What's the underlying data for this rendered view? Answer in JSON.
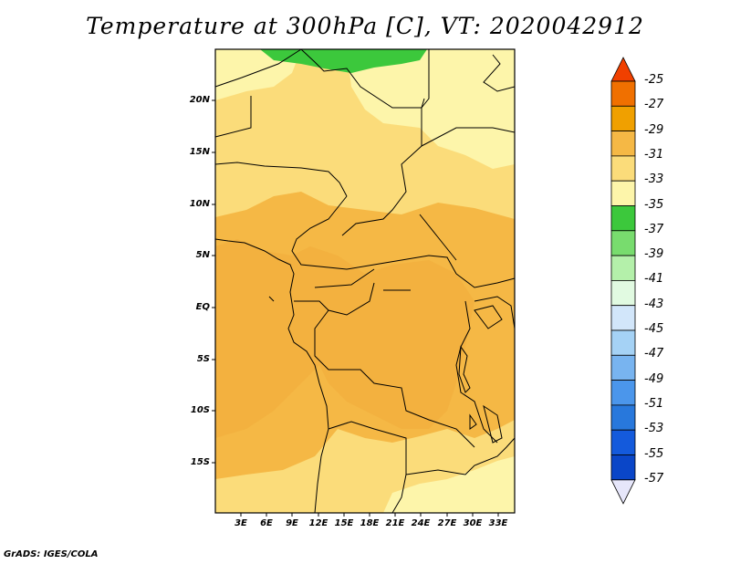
{
  "title": "Temperature at 300hPa [C], VT: 2020042912",
  "credit": "GrADS: IGES/COLA",
  "map": {
    "lat_labels": [
      "20N",
      "15N",
      "10N",
      "5N",
      "EQ",
      "5S",
      "10S",
      "15S"
    ],
    "lon_labels": [
      "3E",
      "6E",
      "9E",
      "12E",
      "15E",
      "18E",
      "21E",
      "24E",
      "27E",
      "30E",
      "33E"
    ]
  },
  "colorbar": {
    "labels": [
      "-25",
      "-27",
      "-29",
      "-31",
      "-33",
      "-35",
      "-37",
      "-39",
      "-41",
      "-43",
      "-45",
      "-47",
      "-49",
      "-51",
      "-53",
      "-55",
      "-57"
    ],
    "colors": [
      "#f04000",
      "#f07000",
      "#f0a000",
      "#f5b845",
      "#fbdc7a",
      "#fdf5aa",
      "#3cc83c",
      "#78dc6e",
      "#b4f0aa",
      "#e1fae1",
      "#d2e6fa",
      "#a5d2f5",
      "#78b4f0",
      "#4b96eb",
      "#2878dc",
      "#145adc",
      "#0a46c8",
      "#0a1e78"
    ],
    "top_arrow_color": "#f04000",
    "bottom_arrow_color": "#e6e6fa"
  }
}
